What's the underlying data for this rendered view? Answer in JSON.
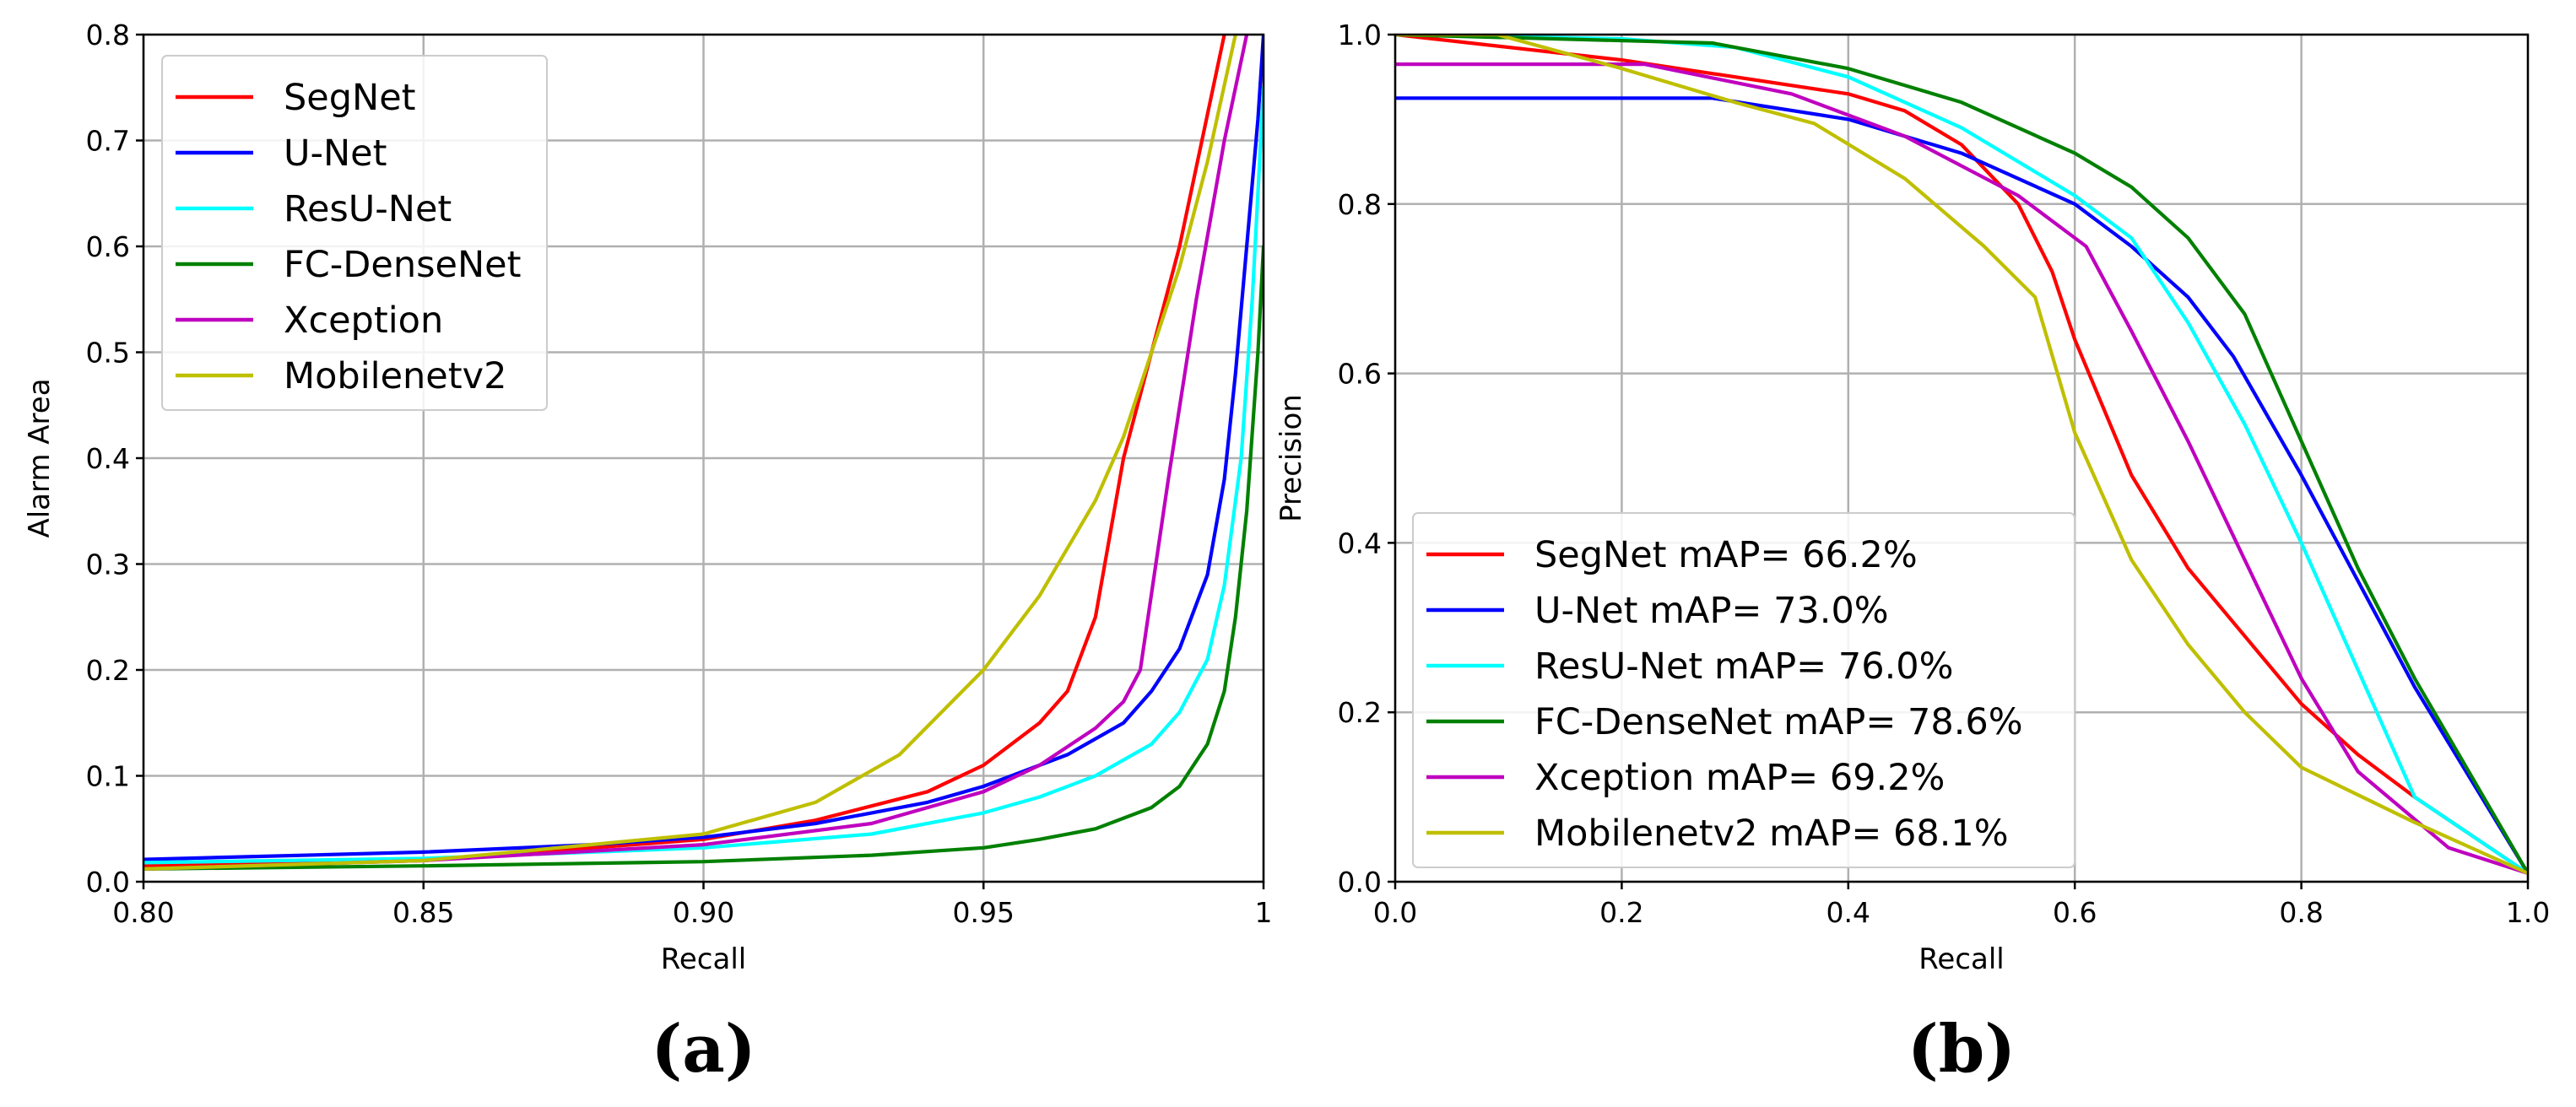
{
  "chart_data": [
    {
      "type": "line",
      "xlabel": "Recall",
      "ylabel": "Alarm Area",
      "caption": "(a)",
      "xlim": [
        0.8,
        1.0
      ],
      "ylim": [
        0.0,
        0.8
      ],
      "grid": true,
      "legend_position": "top-left",
      "xticks": [
        0.8,
        0.85,
        0.9,
        0.95,
        1.0
      ],
      "xtick_labels": [
        "0.80",
        "0.85",
        "0.90",
        "0.95",
        "1"
      ],
      "yticks": [
        0.0,
        0.1,
        0.2,
        0.3,
        0.4,
        0.5,
        0.6,
        0.7,
        0.8
      ],
      "ytick_labels": [
        "0.0",
        "0.1",
        "0.2",
        "0.3",
        "0.4",
        "0.5",
        "0.6",
        "0.7",
        "0.8"
      ],
      "series": [
        {
          "name": "SegNet",
          "color": "#ff0000",
          "x": [
            0.8,
            0.85,
            0.9,
            0.92,
            0.94,
            0.95,
            0.96,
            0.965,
            0.97,
            0.975,
            0.985,
            0.993
          ],
          "y": [
            0.015,
            0.02,
            0.04,
            0.058,
            0.085,
            0.11,
            0.15,
            0.18,
            0.25,
            0.4,
            0.6,
            0.8
          ]
        },
        {
          "name": "U-Net",
          "color": "#0000ff",
          "x": [
            0.8,
            0.85,
            0.88,
            0.9,
            0.92,
            0.94,
            0.95,
            0.965,
            0.975,
            0.98,
            0.985,
            0.99,
            0.993,
            0.995,
            0.997,
            0.999,
            1.0
          ],
          "y": [
            0.021,
            0.028,
            0.035,
            0.042,
            0.055,
            0.075,
            0.09,
            0.12,
            0.15,
            0.18,
            0.22,
            0.29,
            0.38,
            0.48,
            0.6,
            0.72,
            0.8
          ]
        },
        {
          "name": "ResU-Net",
          "color": "#00ffff",
          "x": [
            0.8,
            0.85,
            0.9,
            0.93,
            0.95,
            0.96,
            0.97,
            0.98,
            0.985,
            0.99,
            0.993,
            0.996,
            0.998,
            1.0
          ],
          "y": [
            0.018,
            0.022,
            0.032,
            0.045,
            0.065,
            0.08,
            0.1,
            0.13,
            0.16,
            0.21,
            0.28,
            0.4,
            0.55,
            0.75
          ]
        },
        {
          "name": "FC-DenseNet",
          "color": "#008000",
          "x": [
            0.8,
            0.85,
            0.9,
            0.93,
            0.95,
            0.96,
            0.97,
            0.98,
            0.985,
            0.99,
            0.993,
            0.995,
            0.997,
            0.999,
            1.0
          ],
          "y": [
            0.012,
            0.015,
            0.019,
            0.025,
            0.032,
            0.04,
            0.05,
            0.07,
            0.09,
            0.13,
            0.18,
            0.25,
            0.35,
            0.5,
            0.6
          ]
        },
        {
          "name": "Xception",
          "color": "#bf00bf",
          "x": [
            0.8,
            0.85,
            0.9,
            0.93,
            0.95,
            0.96,
            0.97,
            0.975,
            0.978,
            0.983,
            0.988,
            0.993,
            0.997
          ],
          "y": [
            0.012,
            0.02,
            0.035,
            0.055,
            0.085,
            0.11,
            0.145,
            0.17,
            0.2,
            0.38,
            0.55,
            0.7,
            0.8
          ]
        },
        {
          "name": "Mobilenetv2",
          "color": "#bfbf00",
          "x": [
            0.8,
            0.85,
            0.9,
            0.92,
            0.935,
            0.95,
            0.96,
            0.97,
            0.975,
            0.98,
            0.985,
            0.99,
            0.995
          ],
          "y": [
            0.012,
            0.02,
            0.045,
            0.075,
            0.12,
            0.2,
            0.27,
            0.36,
            0.42,
            0.5,
            0.58,
            0.68,
            0.8
          ]
        }
      ]
    },
    {
      "type": "line",
      "xlabel": "Recall",
      "ylabel": "Precision",
      "caption": "(b)",
      "xlim": [
        0.0,
        1.0
      ],
      "ylim": [
        0.0,
        1.0
      ],
      "grid": true,
      "legend_position": "bottom-left",
      "xticks": [
        0.0,
        0.2,
        0.4,
        0.6,
        0.8,
        1.0
      ],
      "xtick_labels": [
        "0.0",
        "0.2",
        "0.4",
        "0.6",
        "0.8",
        "1.0"
      ],
      "yticks": [
        0.0,
        0.2,
        0.4,
        0.6,
        0.8,
        1.0
      ],
      "ytick_labels": [
        "0.0",
        "0.2",
        "0.4",
        "0.6",
        "0.8",
        "1.0"
      ],
      "series": [
        {
          "name": "SegNet",
          "legend_label": "SegNet  mAP= 66.2%",
          "color": "#ff0000",
          "x": [
            0.0,
            0.2,
            0.4,
            0.45,
            0.5,
            0.55,
            0.58,
            0.6,
            0.65,
            0.7,
            0.75,
            0.8,
            0.85,
            0.9,
            1.0
          ],
          "y": [
            1.0,
            0.97,
            0.93,
            0.91,
            0.87,
            0.8,
            0.72,
            0.64,
            0.48,
            0.37,
            0.29,
            0.21,
            0.15,
            0.1,
            0.01
          ]
        },
        {
          "name": "U-Net",
          "legend_label": "U-Net  mAP= 73.0%",
          "color": "#0000ff",
          "x": [
            0.0,
            0.28,
            0.4,
            0.5,
            0.6,
            0.65,
            0.7,
            0.74,
            0.8,
            0.9,
            1.0
          ],
          "y": [
            0.925,
            0.925,
            0.9,
            0.86,
            0.8,
            0.75,
            0.69,
            0.62,
            0.48,
            0.23,
            0.01
          ]
        },
        {
          "name": "ResU-Net",
          "legend_label": "ResU-Net  mAP= 76.0%",
          "color": "#00ffff",
          "x": [
            0.0,
            0.2,
            0.3,
            0.4,
            0.5,
            0.6,
            0.65,
            0.7,
            0.75,
            0.8,
            0.85,
            0.9,
            1.0
          ],
          "y": [
            1.0,
            0.995,
            0.985,
            0.95,
            0.89,
            0.81,
            0.76,
            0.66,
            0.54,
            0.4,
            0.25,
            0.1,
            0.01
          ]
        },
        {
          "name": "FC-DenseNet",
          "legend_label": "FC-DenseNet  mAP= 78.6%",
          "color": "#008000",
          "x": [
            0.0,
            0.28,
            0.4,
            0.5,
            0.6,
            0.65,
            0.7,
            0.75,
            0.8,
            0.85,
            0.9,
            1.0
          ],
          "y": [
            1.0,
            0.99,
            0.96,
            0.92,
            0.86,
            0.82,
            0.76,
            0.67,
            0.52,
            0.37,
            0.24,
            0.01
          ]
        },
        {
          "name": "Xception",
          "legend_label": "Xception  mAP= 69.2%",
          "color": "#bf00bf",
          "x": [
            0.0,
            0.22,
            0.35,
            0.45,
            0.55,
            0.61,
            0.65,
            0.7,
            0.75,
            0.8,
            0.85,
            0.93,
            1.0
          ],
          "y": [
            0.965,
            0.965,
            0.93,
            0.88,
            0.81,
            0.75,
            0.65,
            0.52,
            0.38,
            0.24,
            0.13,
            0.04,
            0.01
          ]
        },
        {
          "name": "Mobilenetv2",
          "legend_label": "Mobilenetv2  mAP= 68.1%",
          "color": "#bfbf00",
          "x": [
            0.0,
            0.09,
            0.2,
            0.3,
            0.37,
            0.45,
            0.52,
            0.565,
            0.6,
            0.65,
            0.7,
            0.75,
            0.8,
            0.9,
            1.0
          ],
          "y": [
            1.0,
            1.0,
            0.96,
            0.92,
            0.895,
            0.83,
            0.75,
            0.69,
            0.53,
            0.38,
            0.28,
            0.2,
            0.135,
            0.07,
            0.01
          ]
        }
      ]
    }
  ]
}
